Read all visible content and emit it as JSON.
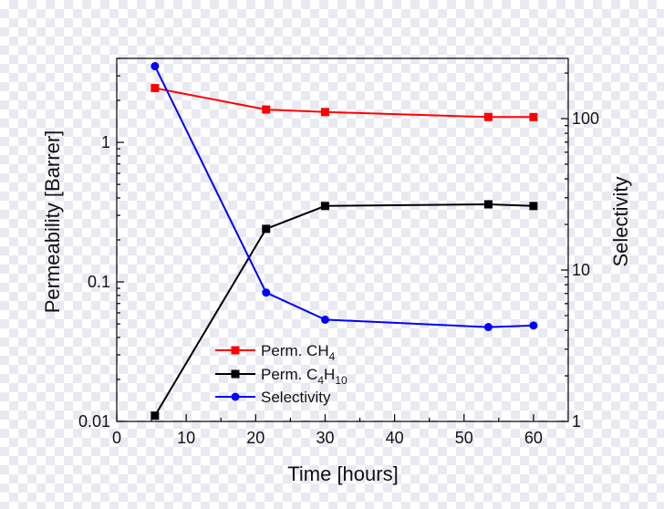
{
  "chart_data": {
    "type": "line",
    "xlabel": "Time [hours]",
    "ylabel_left": "Permeability [Barrer]",
    "ylabel_right": "Selectivity",
    "xlim": [
      0,
      65
    ],
    "ylim_left": [
      0.01,
      4
    ],
    "ylim_right": [
      1,
      250
    ],
    "y_left_scale": "log",
    "y_right_scale": "log",
    "x_ticks": [
      "0",
      "10",
      "20",
      "30",
      "40",
      "50",
      "60"
    ],
    "y_left_ticks": [
      "0.01",
      "0.1",
      "1"
    ],
    "y_right_ticks": [
      "1",
      "10",
      "100"
    ],
    "legend_position": "lower-middle",
    "series": [
      {
        "name": "Perm. CH4",
        "legend_main": "Perm. CH",
        "legend_sub1": "4",
        "legend_mid": "",
        "legend_sub2": "",
        "axis": "left",
        "color": "#ff0000",
        "marker": "square",
        "x": [
          5.5,
          21.5,
          30,
          53.5,
          60
        ],
        "y": [
          2.45,
          1.72,
          1.65,
          1.52,
          1.52
        ]
      },
      {
        "name": "Perm. C4H10",
        "legend_main": "Perm. C",
        "legend_sub1": "4",
        "legend_mid": "H",
        "legend_sub2": "10",
        "axis": "left",
        "color": "#000000",
        "marker": "square",
        "x": [
          5.5,
          21.5,
          30,
          53.5,
          60
        ],
        "y": [
          0.011,
          0.24,
          0.35,
          0.36,
          0.35
        ]
      },
      {
        "name": "Selectivity",
        "legend_main": "Selectivity",
        "legend_sub1": "",
        "legend_mid": "",
        "legend_sub2": "",
        "axis": "right",
        "color": "#0000ff",
        "marker": "circle",
        "x": [
          5.5,
          21.5,
          30,
          53.5,
          60
        ],
        "y": [
          222,
          7.1,
          4.7,
          4.2,
          4.3
        ]
      }
    ]
  }
}
